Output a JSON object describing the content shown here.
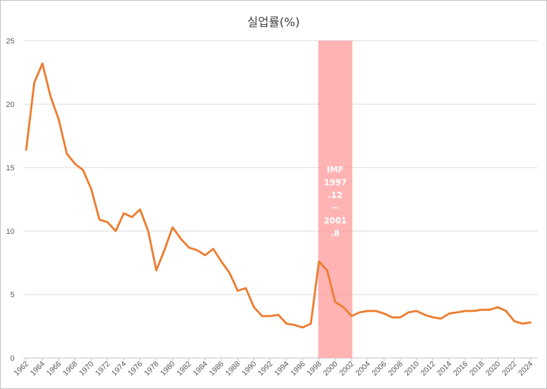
{
  "chart_data": {
    "type": "line",
    "title": "실업률(%)",
    "xlabel": "",
    "ylabel": "",
    "ylim": [
      0,
      25
    ],
    "yticks": [
      0,
      5,
      10,
      15,
      20,
      25
    ],
    "grid": true,
    "x_tick_labels": [
      "1962",
      "1964",
      "1966",
      "1968",
      "1970",
      "1972",
      "1974",
      "1976",
      "1978",
      "1980",
      "1982",
      "1984",
      "1986",
      "1988",
      "1990",
      "1992",
      "1994",
      "1996",
      "1998",
      "2000",
      "2002",
      "2004",
      "2006",
      "2008",
      "2010",
      "2012",
      "2014",
      "2016",
      "2018",
      "2020",
      "2022",
      "2024"
    ],
    "series": [
      {
        "color": "#ed7d31",
        "x": [
          1962,
          1963,
          1964,
          1965,
          1966,
          1967,
          1968,
          1969,
          1970,
          1971,
          1972,
          1973,
          1974,
          1975,
          1976,
          1977,
          1978,
          1979,
          1980,
          1981,
          1982,
          1983,
          1984,
          1985,
          1986,
          1987,
          1988,
          1989,
          1990,
          1991,
          1992,
          1993,
          1994,
          1995,
          1996,
          1997,
          1998,
          1999,
          2000,
          2001,
          2002,
          2003,
          2004,
          2005,
          2006,
          2007,
          2008,
          2009,
          2010,
          2011,
          2012,
          2013,
          2014,
          2015,
          2016,
          2017,
          2018,
          2019,
          2020,
          2021,
          2022,
          2023,
          2024
        ],
        "values": [
          16.4,
          21.7,
          23.2,
          20.6,
          18.8,
          16.1,
          15.3,
          14.8,
          13.3,
          10.9,
          10.7,
          10.0,
          11.4,
          11.1,
          11.7,
          10.0,
          6.9,
          8.5,
          10.3,
          9.4,
          8.7,
          8.5,
          8.1,
          8.6,
          7.6,
          6.7,
          5.3,
          5.5,
          4.0,
          3.3,
          3.3,
          3.4,
          2.7,
          2.6,
          2.4,
          2.7,
          7.6,
          6.9,
          4.4,
          4.0,
          3.3,
          3.6,
          3.7,
          3.7,
          3.5,
          3.2,
          3.2,
          3.6,
          3.7,
          3.4,
          3.2,
          3.1,
          3.5,
          3.6,
          3.7,
          3.7,
          3.8,
          3.8,
          4.0,
          3.7,
          2.9,
          2.7,
          2.8
        ]
      }
    ],
    "highlight": {
      "x_start": 1997.9,
      "x_end": 2002.1,
      "color": "#ff9999",
      "label_lines": [
        "IMF",
        "1997",
        ".12",
        "~",
        "2001",
        ".8"
      ]
    }
  }
}
